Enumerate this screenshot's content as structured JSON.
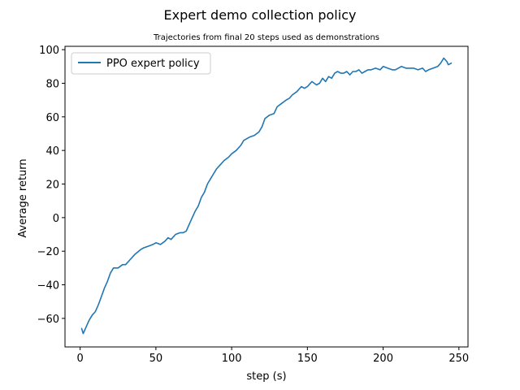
{
  "chart_data": {
    "type": "line",
    "title": "Expert demo collection policy",
    "subtitle": "Trajectories from final 20 steps used as demonstrations",
    "xlabel": "step (s)",
    "ylabel": "Average return",
    "xlim": [
      -10,
      256
    ],
    "ylim": [
      -77,
      102
    ],
    "xticks": [
      0,
      50,
      100,
      150,
      200,
      250
    ],
    "yticks": [
      -60,
      -40,
      -20,
      0,
      20,
      40,
      60,
      80,
      100
    ],
    "xtick_labels": [
      "0",
      "50",
      "100",
      "150",
      "200",
      "250"
    ],
    "ytick_labels": [
      "−60",
      "−40",
      "−20",
      "0",
      "20",
      "40",
      "60",
      "80",
      "100"
    ],
    "grid": false,
    "legend_position": "upper-left",
    "series": [
      {
        "name": "PPO expert policy",
        "color": "#1f77b4",
        "x": [
          1,
          2,
          4,
          6,
          8,
          10,
          12,
          14,
          16,
          18,
          20,
          22,
          25,
          28,
          30,
          33,
          36,
          40,
          42,
          45,
          48,
          50,
          53,
          56,
          58,
          60,
          63,
          66,
          68,
          70,
          72,
          74,
          76,
          78,
          80,
          82,
          84,
          86,
          88,
          90,
          92,
          95,
          98,
          100,
          103,
          106,
          108,
          110,
          112,
          115,
          118,
          120,
          122,
          125,
          128,
          130,
          133,
          136,
          138,
          140,
          143,
          146,
          148,
          150,
          153,
          156,
          158,
          160,
          162,
          164,
          166,
          168,
          170,
          172,
          174,
          176,
          178,
          180,
          182,
          184,
          186,
          188,
          190,
          192,
          195,
          198,
          200,
          203,
          206,
          208,
          210,
          212,
          215,
          218,
          220,
          223,
          226,
          228,
          230,
          233,
          236,
          238,
          240,
          242,
          243,
          245
        ],
        "values": [
          -66,
          -69,
          -65,
          -61,
          -58,
          -56,
          -52,
          -47,
          -42,
          -38,
          -33,
          -30,
          -30,
          -28,
          -28,
          -25,
          -22,
          -19,
          -18,
          -17,
          -16,
          -15,
          -16,
          -14,
          -12,
          -13,
          -10,
          -9,
          -9,
          -8,
          -4,
          0,
          4,
          7,
          12,
          15,
          20,
          23,
          26,
          29,
          31,
          34,
          36,
          38,
          40,
          43,
          46,
          47,
          48,
          49,
          51,
          54,
          59,
          61,
          62,
          66,
          68,
          70,
          71,
          73,
          75,
          78,
          77,
          78,
          81,
          79,
          80,
          83,
          81,
          84,
          83,
          86,
          87,
          86,
          86,
          87,
          85,
          87,
          87,
          88,
          86,
          87,
          88,
          88,
          89,
          88,
          90,
          89,
          88,
          88,
          89,
          90,
          89,
          89,
          89,
          88,
          89,
          87,
          88,
          89,
          90,
          92,
          95,
          93,
          91,
          92
        ]
      }
    ]
  }
}
